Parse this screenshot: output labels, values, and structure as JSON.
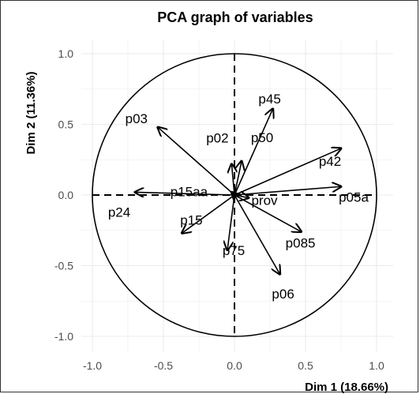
{
  "chart_data": {
    "type": "scatter",
    "title": "PCA graph of variables",
    "xlabel": "Dim 1 (18.66%)",
    "ylabel": "Dim 2 (11.36%)",
    "xlim": [
      -1.0,
      1.0
    ],
    "ylim": [
      -1.0,
      1.0
    ],
    "x_ticks": [
      "-1.0",
      "-0.5",
      "0.0",
      "0.5",
      "1.0"
    ],
    "y_ticks": [
      "1.0",
      "0.5",
      "0.0",
      "-0.5",
      "-1.0"
    ],
    "grid": true,
    "correlation_circle": true,
    "variables": [
      {
        "name": "p45",
        "x": 0.27,
        "y": 0.61
      },
      {
        "name": "p03",
        "x": -0.54,
        "y": 0.48
      },
      {
        "name": "p02",
        "x": -0.02,
        "y": 0.22
      },
      {
        "name": "p50",
        "x": 0.05,
        "y": 0.24
      },
      {
        "name": "p42",
        "x": 0.75,
        "y": 0.33
      },
      {
        "name": "p15aa",
        "x": -0.02,
        "y": 0.02
      },
      {
        "name": "p05a",
        "x": 0.75,
        "y": 0.06
      },
      {
        "name": "p24",
        "x": -0.7,
        "y": 0.02
      },
      {
        "name": "prov",
        "x": 0.1,
        "y": -0.02
      },
      {
        "name": "p085",
        "x": 0.47,
        "y": -0.26
      },
      {
        "name": "p15",
        "x": -0.37,
        "y": -0.27
      },
      {
        "name": "p75",
        "x": -0.05,
        "y": -0.39
      },
      {
        "name": "p06",
        "x": 0.32,
        "y": -0.56
      }
    ]
  },
  "colors": {
    "arrow": "#000000",
    "grid": "#ebebeb",
    "tick_text": "#4d4d4d"
  }
}
